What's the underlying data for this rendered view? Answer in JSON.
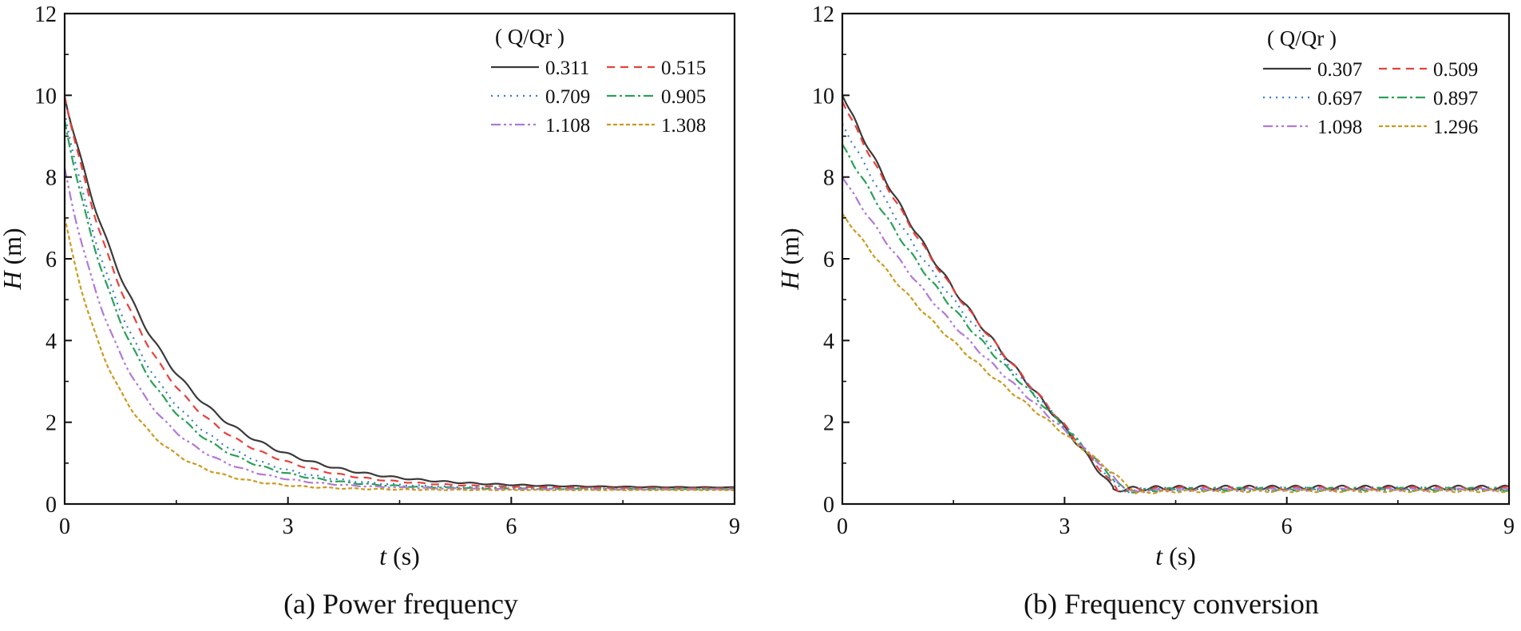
{
  "chart_data": [
    {
      "type": "line",
      "panel": "a",
      "caption": "(a) Power frequency",
      "xlabel_var": "t",
      "xlabel_unit": " (s)",
      "ylabel_var": "H",
      "ylabel_unit": " (m)",
      "xlim": [
        0,
        9
      ],
      "ylim": [
        0,
        12
      ],
      "xticks": [
        "0",
        "3",
        "6",
        "9"
      ],
      "yticks": [
        "0",
        "2",
        "4",
        "6",
        "8",
        "10",
        "12"
      ],
      "legend_title": "( Q/Qr )",
      "legend_position": "top-right",
      "series": [
        {
          "name": "0.311",
          "h0": 10.0,
          "hf": 0.4,
          "k": 0.82,
          "color": "#3a3a3a",
          "dash": "",
          "wiggle": 0.06
        },
        {
          "name": "0.515",
          "h0": 10.0,
          "hf": 0.38,
          "k": 0.9,
          "color": "#e8413c",
          "dash": "10,7",
          "wiggle": 0.04
        },
        {
          "name": "0.709",
          "h0": 9.6,
          "hf": 0.37,
          "k": 1.0,
          "color": "#3a7ccc",
          "dash": "2,6",
          "wiggle": 0.04
        },
        {
          "name": "0.905",
          "h0": 9.4,
          "hf": 0.36,
          "k": 1.05,
          "color": "#2aa05a",
          "dash": "12,4,3,4",
          "wiggle": 0.04
        },
        {
          "name": "1.108",
          "h0": 8.2,
          "hf": 0.36,
          "k": 1.15,
          "color": "#b07ad6",
          "dash": "12,4,3,4,3,4",
          "wiggle": 0.03
        },
        {
          "name": "1.308",
          "h0": 7.0,
          "hf": 0.34,
          "k": 1.35,
          "color": "#cc9a1e",
          "dash": "5,3",
          "wiggle": 0.03
        }
      ]
    },
    {
      "type": "line",
      "panel": "b",
      "caption": "(b) Frequency conversion",
      "xlabel_var": "t",
      "xlabel_unit": " (s)",
      "ylabel_var": "H",
      "ylabel_unit": " (m)",
      "xlim": [
        0,
        9
      ],
      "ylim": [
        0,
        12
      ],
      "xticks": [
        "0",
        "3",
        "6",
        "9"
      ],
      "yticks": [
        "0",
        "2",
        "4",
        "6",
        "8",
        "10",
        "12"
      ],
      "legend_title": "( Q/Qr )",
      "legend_position": "top-right",
      "series": [
        {
          "name": "0.307",
          "h0": 10.0,
          "hf": 0.4,
          "tend": 3.65,
          "color": "#3a3a3a",
          "dash": "",
          "wiggle": 0.05
        },
        {
          "name": "0.509",
          "h0": 9.85,
          "hf": 0.38,
          "tend": 3.7,
          "color": "#e8413c",
          "dash": "10,7",
          "wiggle": 0.04
        },
        {
          "name": "0.697",
          "h0": 9.3,
          "hf": 0.37,
          "tend": 3.75,
          "color": "#3a7ccc",
          "dash": "2,6",
          "wiggle": 0.04
        },
        {
          "name": "0.897",
          "h0": 8.8,
          "hf": 0.36,
          "tend": 3.8,
          "color": "#2aa05a",
          "dash": "12,4,3,4",
          "wiggle": 0.04
        },
        {
          "name": "1.098",
          "h0": 8.0,
          "hf": 0.35,
          "tend": 3.85,
          "color": "#b07ad6",
          "dash": "12,4,3,4,3,4",
          "wiggle": 0.03
        },
        {
          "name": "1.296",
          "h0": 7.1,
          "hf": 0.32,
          "tend": 3.95,
          "color": "#cc9a1e",
          "dash": "5,3",
          "wiggle": 0.03
        }
      ]
    }
  ]
}
